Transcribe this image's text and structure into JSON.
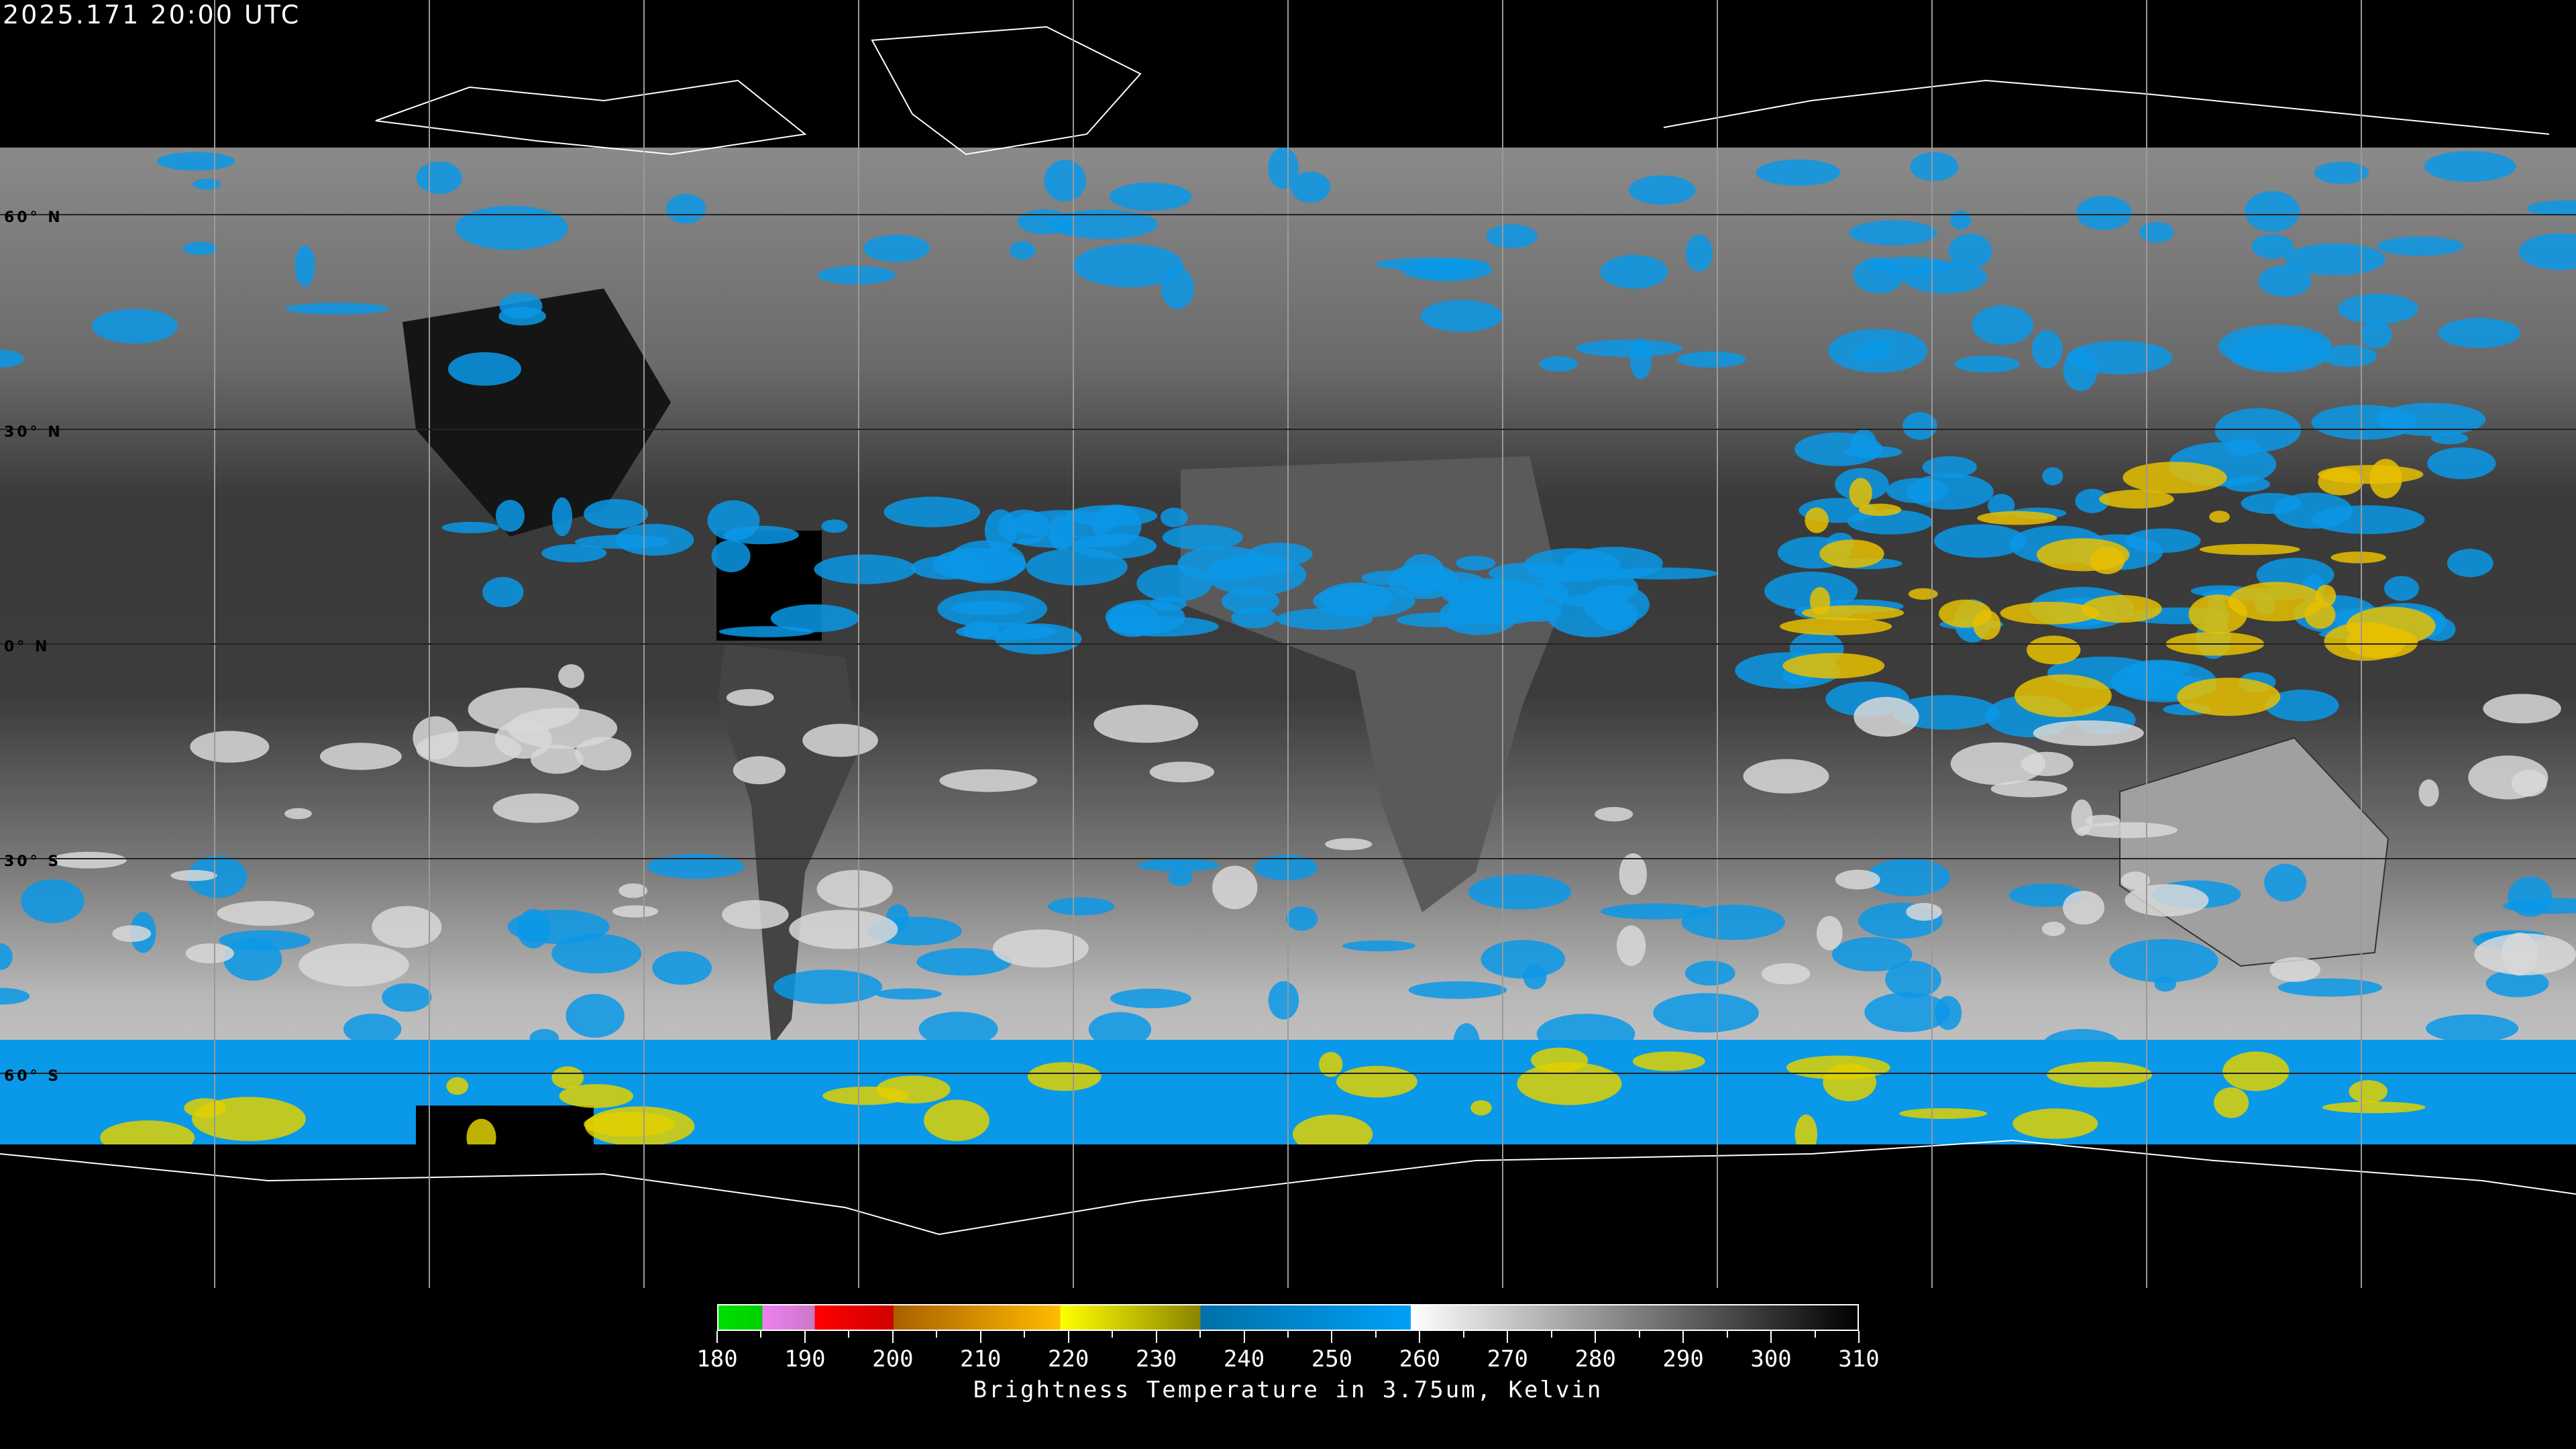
{
  "header": {
    "timestamp": "2025.171 20:00 UTC"
  },
  "map": {
    "projection": "equirectangular",
    "product": "infrared brightness temperature imagery",
    "latitude_labels": [
      "60° N",
      "30° N",
      "0° N",
      "30° S",
      "60° S"
    ],
    "graticule_spacing_degrees": 30,
    "colors": {
      "background": "#000000",
      "cold_cloud_blue": "#0a98e8",
      "very_cold_yellow": "#e0d000",
      "coastline": "#ffffff"
    }
  },
  "colorbar": {
    "tick_labels": [
      "180",
      "190",
      "200",
      "210",
      "220",
      "230",
      "240",
      "250",
      "260",
      "270",
      "280",
      "290",
      "300",
      "310"
    ],
    "range": [
      180,
      310
    ],
    "title": "Brightness Temperature in 3.75um, Kelvin",
    "segments": [
      {
        "from": 180,
        "to": 185,
        "color": "#00e000"
      },
      {
        "from": 185,
        "to": 191,
        "color": "#e080e0"
      },
      {
        "from": 191,
        "to": 200,
        "color": "#ff0000"
      },
      {
        "from": 200,
        "to": 219,
        "color": "#d08000"
      },
      {
        "from": 219,
        "to": 235,
        "color": "#e0e000"
      },
      {
        "from": 235,
        "to": 259,
        "color": "#0090e0"
      },
      {
        "from": 259,
        "to": 310,
        "color": "#808080"
      }
    ]
  }
}
